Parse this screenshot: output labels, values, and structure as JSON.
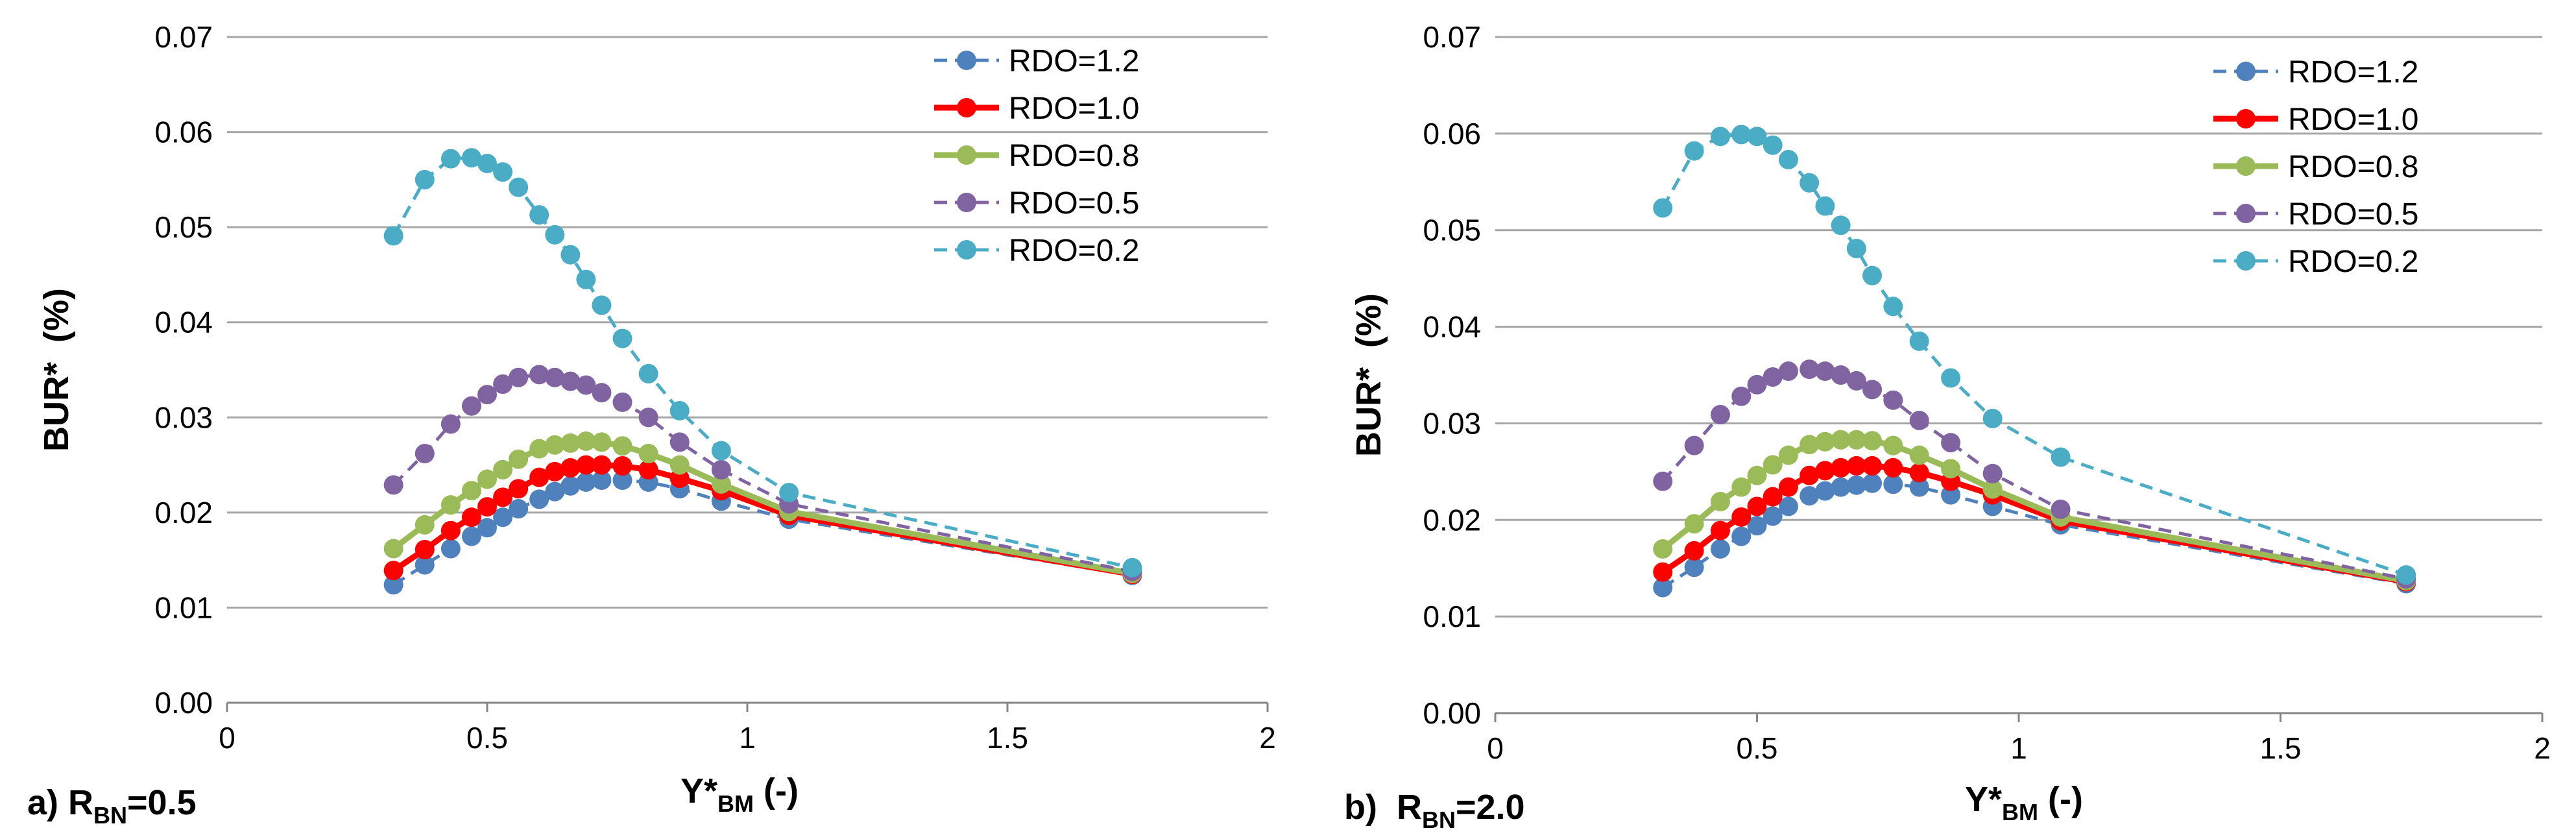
{
  "chart_data": [
    {
      "type": "line",
      "panel_label": "a) R",
      "panel_label_sub": "BN",
      "panel_label_suffix": "=0.5",
      "ylabel": "BUR*  (%)",
      "xlabel_main": "Y*",
      "xlabel_sub": "BM",
      "xlabel_suffix": " (-)",
      "xlim": [
        0,
        2
      ],
      "ylim": [
        0,
        0.07
      ],
      "xticks": [
        "0",
        "0.5",
        "1",
        "1.5",
        "2"
      ],
      "yticks": [
        "0.00",
        "0.01",
        "0.02",
        "0.03",
        "0.04",
        "0.05",
        "0.06",
        "0.07"
      ],
      "grid": true,
      "legend_position": "top-right",
      "series": [
        {
          "name": "RDO=1.2",
          "color": "#4F81BD",
          "line_style": "dashed",
          "x": [
            0.32,
            0.38,
            0.43,
            0.47,
            0.5,
            0.53,
            0.56,
            0.6,
            0.63,
            0.66,
            0.69,
            0.72,
            0.76,
            0.81,
            0.87,
            0.95,
            1.08,
            1.74
          ],
          "y": [
            0.0124,
            0.0145,
            0.0162,
            0.0175,
            0.0184,
            0.0195,
            0.0204,
            0.0214,
            0.0222,
            0.0228,
            0.0232,
            0.0234,
            0.0234,
            0.0232,
            0.0225,
            0.0212,
            0.0193,
            0.0134
          ]
        },
        {
          "name": "RDO=1.0",
          "color": "#FF0000",
          "line_style": "solid",
          "x": [
            0.32,
            0.38,
            0.43,
            0.47,
            0.5,
            0.53,
            0.56,
            0.6,
            0.63,
            0.66,
            0.69,
            0.72,
            0.76,
            0.81,
            0.87,
            0.95,
            1.08,
            1.74
          ],
          "y": [
            0.0139,
            0.0161,
            0.0181,
            0.0195,
            0.0206,
            0.0216,
            0.0225,
            0.0237,
            0.0243,
            0.0247,
            0.025,
            0.025,
            0.0249,
            0.0245,
            0.0236,
            0.0223,
            0.0197,
            0.0135
          ]
        },
        {
          "name": "RDO=0.8",
          "color": "#9BBB59",
          "line_style": "solid",
          "x": [
            0.32,
            0.38,
            0.43,
            0.47,
            0.5,
            0.53,
            0.56,
            0.6,
            0.63,
            0.66,
            0.69,
            0.72,
            0.76,
            0.81,
            0.87,
            0.95,
            1.08,
            1.74
          ],
          "y": [
            0.0162,
            0.0187,
            0.0208,
            0.0223,
            0.0235,
            0.0245,
            0.0256,
            0.0267,
            0.0271,
            0.0273,
            0.0275,
            0.0274,
            0.027,
            0.0262,
            0.025,
            0.023,
            0.0201,
            0.0136
          ]
        },
        {
          "name": "RDO=0.5",
          "color": "#8064A2",
          "line_style": "dashed",
          "x": [
            0.32,
            0.38,
            0.43,
            0.47,
            0.5,
            0.53,
            0.56,
            0.6,
            0.63,
            0.66,
            0.69,
            0.72,
            0.76,
            0.81,
            0.87,
            0.95,
            1.08,
            1.74
          ],
          "y": [
            0.0229,
            0.0262,
            0.0293,
            0.0312,
            0.0324,
            0.0335,
            0.0342,
            0.0345,
            0.0342,
            0.0338,
            0.0334,
            0.0326,
            0.0316,
            0.03,
            0.0274,
            0.0245,
            0.0209,
            0.0138
          ]
        },
        {
          "name": "RDO=0.2",
          "color": "#4BACC6",
          "line_style": "dashed",
          "x": [
            0.32,
            0.38,
            0.43,
            0.47,
            0.5,
            0.53,
            0.56,
            0.6,
            0.63,
            0.66,
            0.69,
            0.72,
            0.76,
            0.81,
            0.87,
            0.95,
            1.08,
            1.74
          ],
          "y": [
            0.0491,
            0.055,
            0.0572,
            0.0573,
            0.0567,
            0.0558,
            0.0542,
            0.0513,
            0.0492,
            0.0471,
            0.0445,
            0.0418,
            0.0383,
            0.0346,
            0.0307,
            0.0265,
            0.0221,
            0.0142
          ]
        }
      ]
    },
    {
      "type": "line",
      "panel_label": "b)  R",
      "panel_label_sub": "BN",
      "panel_label_suffix": "=2.0",
      "ylabel": "BUR*  (%)",
      "xlabel_main": "Y*",
      "xlabel_sub": "BM",
      "xlabel_suffix": " (-)",
      "xlim": [
        0,
        2
      ],
      "ylim": [
        0,
        0.07
      ],
      "xticks": [
        "0",
        "0.5",
        "1",
        "1.5",
        "2"
      ],
      "yticks": [
        "0.00",
        "0.01",
        "0.02",
        "0.03",
        "0.04",
        "0.05",
        "0.06",
        "0.07"
      ],
      "grid": true,
      "legend_position": "top-right",
      "series": [
        {
          "name": "RDO=1.2",
          "color": "#4F81BD",
          "line_style": "dashed",
          "x": [
            0.32,
            0.38,
            0.43,
            0.47,
            0.5,
            0.53,
            0.56,
            0.6,
            0.63,
            0.66,
            0.69,
            0.72,
            0.76,
            0.81,
            0.87,
            0.95,
            1.08,
            1.74
          ],
          "y": [
            0.013,
            0.0151,
            0.017,
            0.0183,
            0.0194,
            0.0204,
            0.0214,
            0.0225,
            0.023,
            0.0234,
            0.0236,
            0.0238,
            0.0237,
            0.0234,
            0.0226,
            0.0214,
            0.0195,
            0.0134
          ]
        },
        {
          "name": "RDO=1.0",
          "color": "#FF0000",
          "line_style": "solid",
          "x": [
            0.32,
            0.38,
            0.43,
            0.47,
            0.5,
            0.53,
            0.56,
            0.6,
            0.63,
            0.66,
            0.69,
            0.72,
            0.76,
            0.81,
            0.87,
            0.95,
            1.08,
            1.74
          ],
          "y": [
            0.0146,
            0.0168,
            0.0189,
            0.0203,
            0.0214,
            0.0224,
            0.0234,
            0.0246,
            0.0251,
            0.0254,
            0.0256,
            0.0256,
            0.0254,
            0.0249,
            0.024,
            0.0226,
            0.0199,
            0.0136
          ]
        },
        {
          "name": "RDO=0.8",
          "color": "#9BBB59",
          "line_style": "solid",
          "x": [
            0.32,
            0.38,
            0.43,
            0.47,
            0.5,
            0.53,
            0.56,
            0.6,
            0.63,
            0.66,
            0.69,
            0.72,
            0.76,
            0.81,
            0.87,
            0.95,
            1.08,
            1.74
          ],
          "y": [
            0.017,
            0.0196,
            0.0219,
            0.0234,
            0.0246,
            0.0257,
            0.0267,
            0.0278,
            0.0281,
            0.0283,
            0.0283,
            0.0282,
            0.0277,
            0.0267,
            0.0253,
            0.0232,
            0.0203,
            0.0137
          ]
        },
        {
          "name": "RDO=0.5",
          "color": "#8064A2",
          "line_style": "dashed",
          "x": [
            0.32,
            0.38,
            0.43,
            0.47,
            0.5,
            0.53,
            0.56,
            0.6,
            0.63,
            0.66,
            0.69,
            0.72,
            0.76,
            0.81,
            0.87,
            0.95,
            1.08,
            1.74
          ],
          "y": [
            0.024,
            0.0277,
            0.0309,
            0.0328,
            0.034,
            0.0348,
            0.0354,
            0.0356,
            0.0354,
            0.035,
            0.0344,
            0.0335,
            0.0324,
            0.0303,
            0.028,
            0.0248,
            0.0211,
            0.0139
          ]
        },
        {
          "name": "RDO=0.2",
          "color": "#4BACC6",
          "line_style": "dashed",
          "x": [
            0.32,
            0.38,
            0.43,
            0.47,
            0.5,
            0.53,
            0.56,
            0.6,
            0.63,
            0.66,
            0.69,
            0.72,
            0.76,
            0.81,
            0.87,
            0.95,
            1.08,
            1.74
          ],
          "y": [
            0.0523,
            0.0582,
            0.0597,
            0.0599,
            0.0597,
            0.0588,
            0.0573,
            0.0549,
            0.0525,
            0.0505,
            0.0481,
            0.0453,
            0.0421,
            0.0385,
            0.0347,
            0.0305,
            0.0265,
            0.0143
          ]
        }
      ]
    }
  ]
}
